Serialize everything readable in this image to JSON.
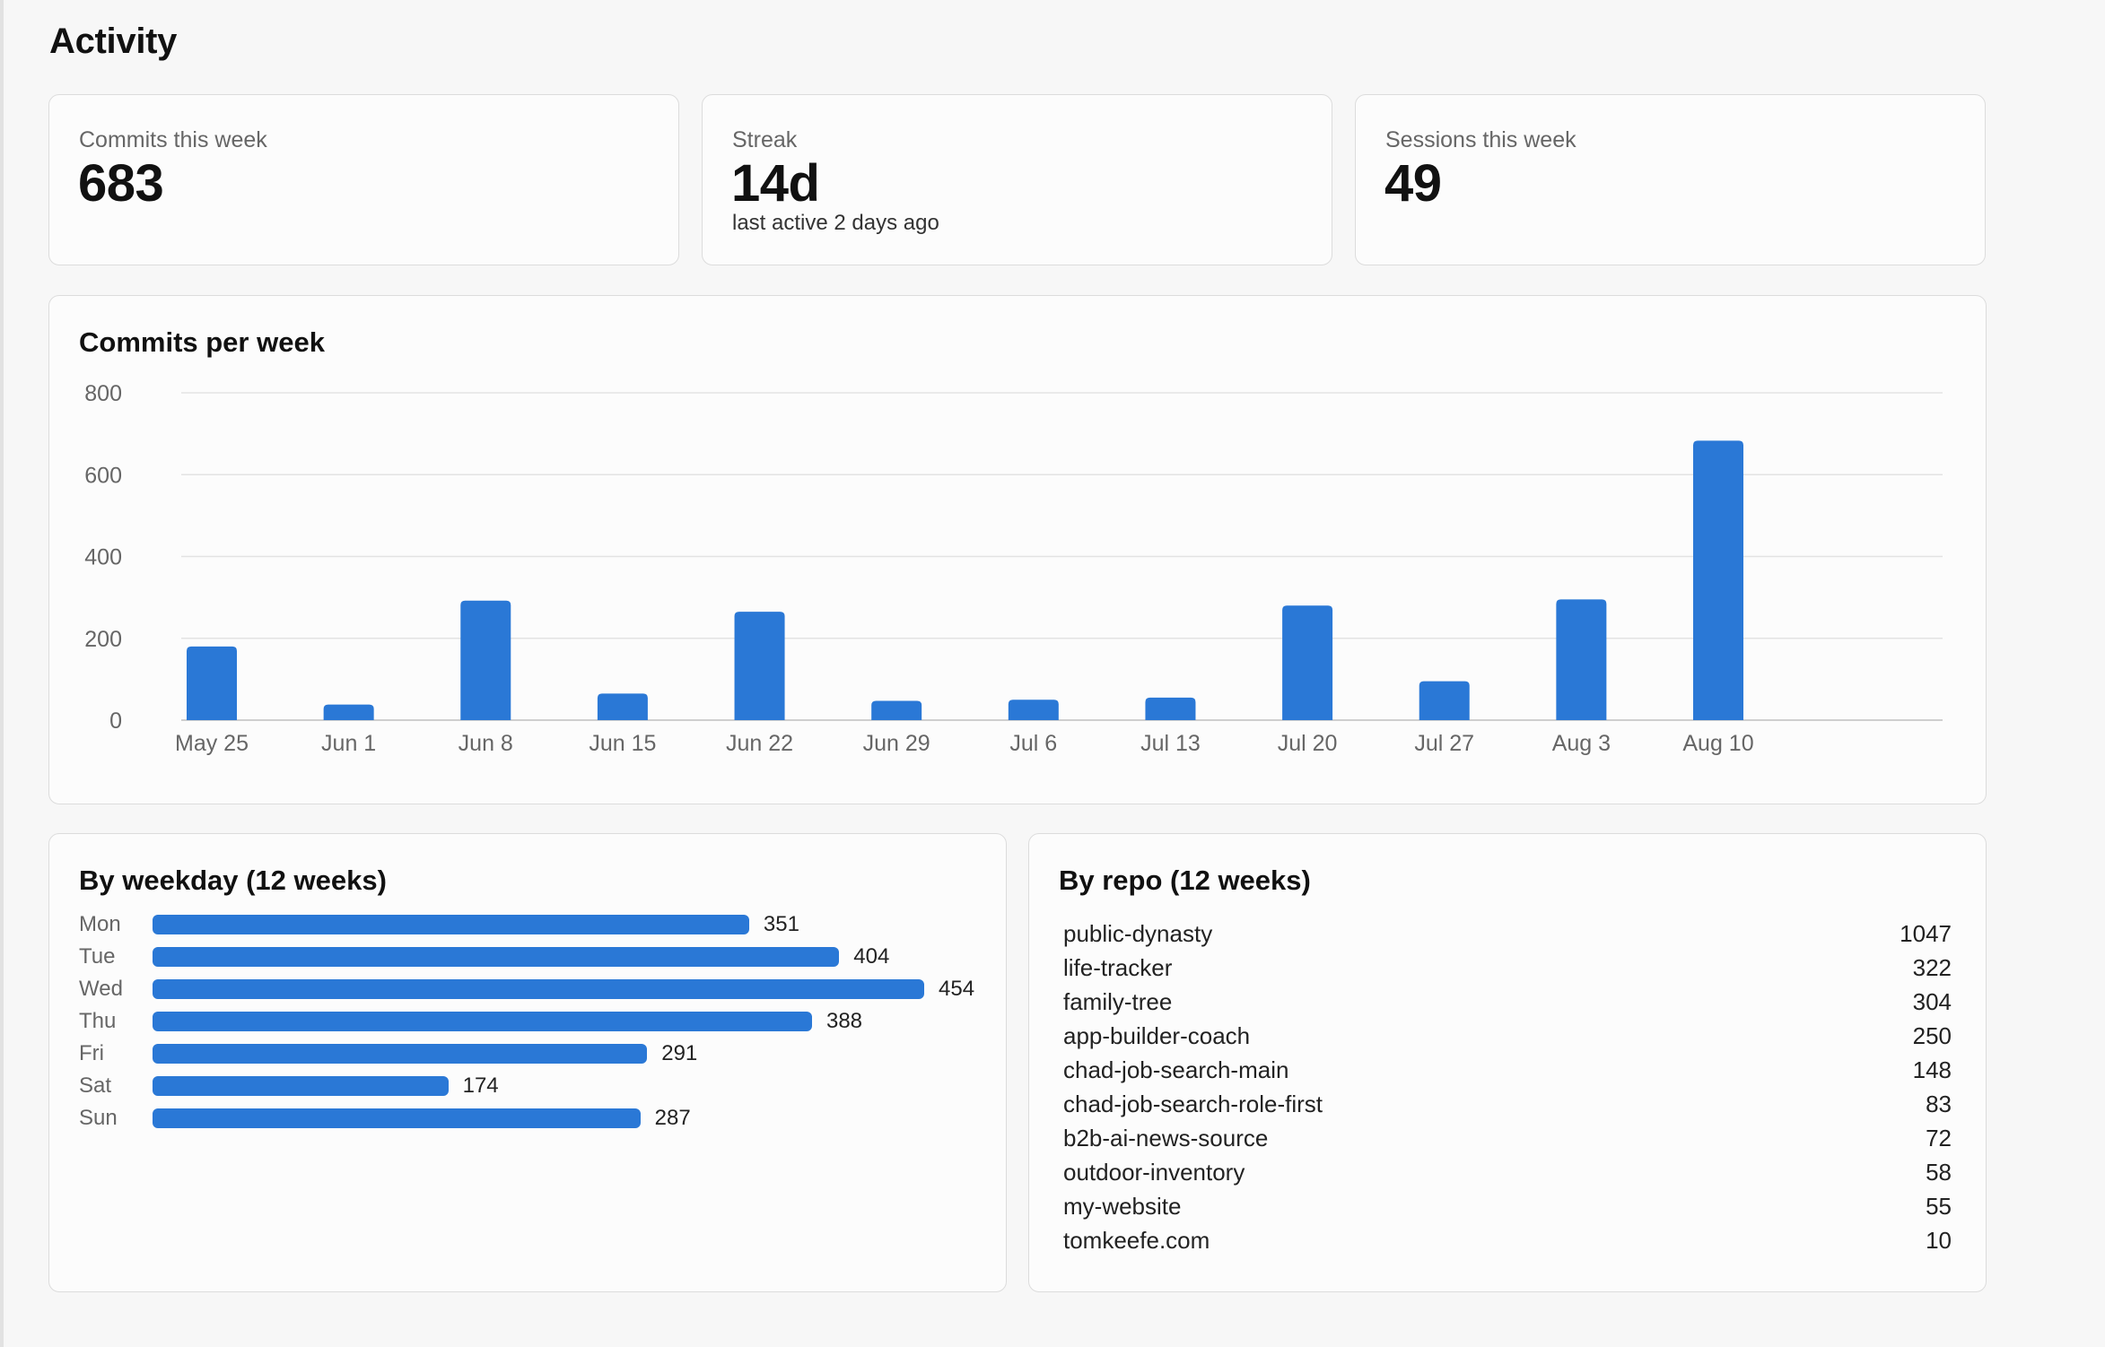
{
  "page": {
    "title": "Activity"
  },
  "stats": [
    {
      "label": "Commits this week",
      "value": "683",
      "sub": ""
    },
    {
      "label": "Streak",
      "value": "14d",
      "sub": "last active 2 days ago"
    },
    {
      "label": "Sessions this week",
      "value": "49",
      "sub": ""
    }
  ],
  "commits_chart": {
    "title": "Commits per week"
  },
  "weekday": {
    "title": "By weekday (12 weeks)"
  },
  "repos": {
    "title": "By repo (12 weeks)",
    "items": [
      {
        "name": "public-dynasty",
        "count": "1047"
      },
      {
        "name": "life-tracker",
        "count": "322"
      },
      {
        "name": "family-tree",
        "count": "304"
      },
      {
        "name": "app-builder-coach",
        "count": "250"
      },
      {
        "name": "chad-job-search-main",
        "count": "148"
      },
      {
        "name": "chad-job-search-role-first",
        "count": "83"
      },
      {
        "name": "b2b-ai-news-source",
        "count": "72"
      },
      {
        "name": "outdoor-inventory",
        "count": "58"
      },
      {
        "name": "my-website",
        "count": "55"
      },
      {
        "name": "tomkeefe.com",
        "count": "10"
      }
    ]
  },
  "colors": {
    "bar": "#2a78d6",
    "grid": "#e3e3e3",
    "axis": "#cfcfcf"
  },
  "chart_data": [
    {
      "type": "bar",
      "title": "Commits per week",
      "categories": [
        "May 25",
        "Jun 1",
        "Jun 8",
        "Jun 15",
        "Jun 22",
        "Jun 29",
        "Jul 6",
        "Jul 13",
        "Jul 20",
        "Jul 27",
        "Aug 3",
        "Aug 10"
      ],
      "values": [
        180,
        38,
        292,
        65,
        265,
        47,
        50,
        55,
        280,
        95,
        295,
        683
      ],
      "y_ticks": [
        0,
        200,
        400,
        600,
        800
      ],
      "ylim": [
        0,
        800
      ],
      "grid": true,
      "legend": "none"
    },
    {
      "type": "bar",
      "orientation": "horizontal",
      "title": "By weekday (12 weeks)",
      "categories": [
        "Mon",
        "Tue",
        "Wed",
        "Thu",
        "Fri",
        "Sat",
        "Sun"
      ],
      "values": [
        351,
        404,
        454,
        388,
        291,
        174,
        287
      ],
      "grid": false,
      "legend": "none"
    }
  ]
}
